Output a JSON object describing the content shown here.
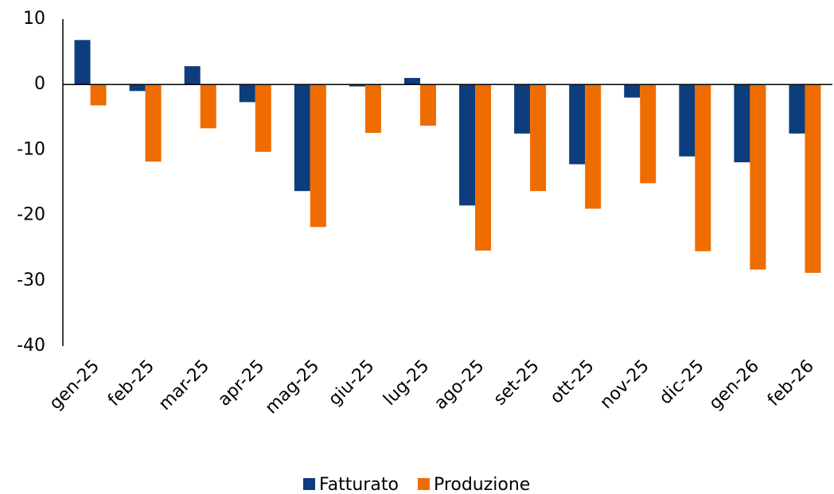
{
  "chart_data": {
    "type": "bar",
    "categories": [
      "gen-25",
      "feb-25",
      "mar-25",
      "apr-25",
      "mag-25",
      "giu-25",
      "lug-25",
      "ago-25",
      "set-25",
      "ott-25",
      "nov-25",
      "dic-25",
      "gen-26",
      "feb-26"
    ],
    "series": [
      {
        "name": "Fatturato",
        "color": "#0d3d7c",
        "values": [
          6.8,
          -1.0,
          2.8,
          -2.7,
          -16.3,
          -0.3,
          1.0,
          -18.5,
          -7.5,
          -12.2,
          -2.0,
          -11.0,
          -11.9,
          -7.5
        ]
      },
      {
        "name": "Produzione",
        "color": "#ef6c00",
        "values": [
          -3.2,
          -11.8,
          -6.7,
          -10.3,
          -21.8,
          -7.4,
          -6.3,
          -25.4,
          -16.3,
          -19.0,
          -15.1,
          -25.5,
          -28.3,
          -28.8
        ]
      }
    ],
    "ylim": [
      -40,
      10
    ],
    "yticks": [
      -40,
      -30,
      -20,
      -10,
      0,
      10
    ],
    "grid": false,
    "legend": "bottom"
  }
}
